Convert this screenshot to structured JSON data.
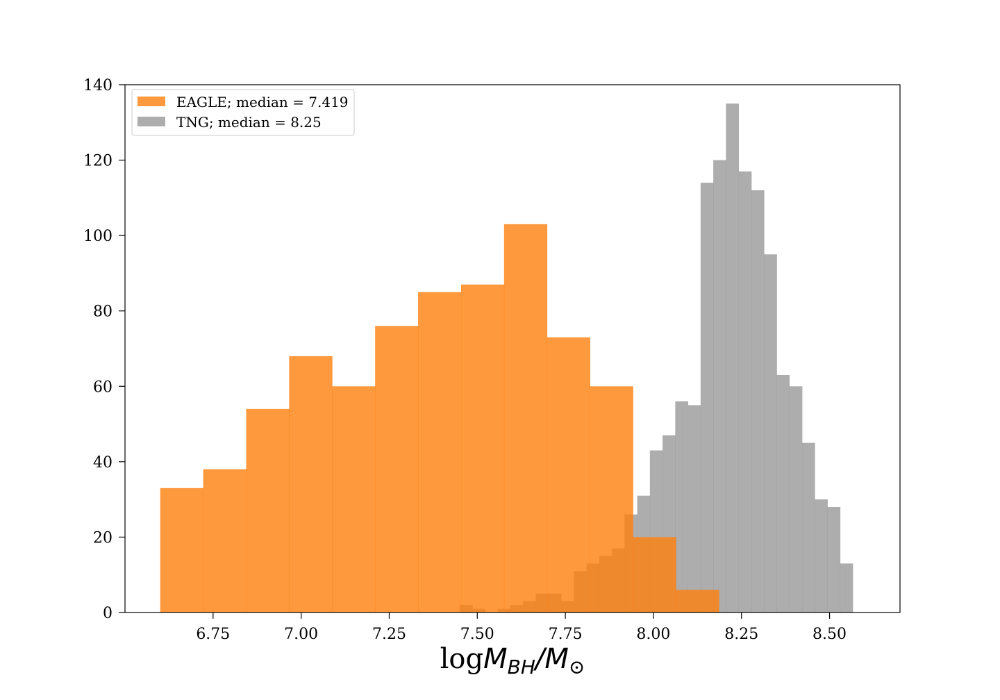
{
  "chart_data": {
    "type": "bar",
    "title": "",
    "xlabel": {
      "prefix": "log",
      "m1": "M",
      "sub1": "BH",
      "slash": "/",
      "m2": "M",
      "sub2": "⊙"
    },
    "ylabel": "",
    "xlim": [
      6.5,
      8.7
    ],
    "ylim": [
      0,
      140
    ],
    "x_ticks": [
      6.75,
      7.0,
      7.25,
      7.5,
      7.75,
      8.0,
      8.25,
      8.5
    ],
    "x_tick_labels": [
      "6.75",
      "7.00",
      "7.25",
      "7.50",
      "7.75",
      "8.00",
      "8.25",
      "8.50"
    ],
    "y_ticks": [
      0,
      20,
      40,
      60,
      80,
      100,
      120,
      140
    ],
    "y_tick_labels": [
      "0",
      "20",
      "40",
      "60",
      "80",
      "100",
      "120",
      "140"
    ],
    "grid": false,
    "legend": {
      "placement": "top-left",
      "entries": [
        "EAGLE; median = 7.419",
        "TNG; median = 8.25"
      ]
    },
    "series": [
      {
        "name": "TNG; median = 8.25",
        "color": "#999999",
        "alpha": 0.8,
        "bin_edges": [
          7.45,
          7.486,
          7.522,
          7.558,
          7.594,
          7.63,
          7.666,
          7.702,
          7.738,
          7.774,
          7.81,
          7.846,
          7.882,
          7.918,
          7.954,
          7.99,
          8.026,
          8.062,
          8.098,
          8.134,
          8.17,
          8.206,
          8.242,
          8.278,
          8.314,
          8.35,
          8.386,
          8.422,
          8.458,
          8.494,
          8.53,
          8.566,
          8.602
        ],
        "counts": [
          2,
          1,
          0,
          1,
          2,
          3,
          5,
          5,
          3,
          11,
          13,
          15,
          17,
          26,
          31,
          43,
          47,
          56,
          55,
          114,
          120,
          135,
          117,
          112,
          95,
          63,
          60,
          45,
          30,
          28,
          13,
          0
        ]
      },
      {
        "name": "EAGLE; median = 7.419",
        "color": "#ff7f0e",
        "alpha": 0.8,
        "bin_edges": [
          6.6,
          6.722,
          6.844,
          6.966,
          7.088,
          7.21,
          7.332,
          7.454,
          7.576,
          7.698,
          7.82,
          7.942,
          8.064,
          8.186
        ],
        "counts": [
          33,
          38,
          54,
          68,
          60,
          76,
          85,
          87,
          103,
          73,
          60,
          20,
          6
        ]
      }
    ]
  }
}
